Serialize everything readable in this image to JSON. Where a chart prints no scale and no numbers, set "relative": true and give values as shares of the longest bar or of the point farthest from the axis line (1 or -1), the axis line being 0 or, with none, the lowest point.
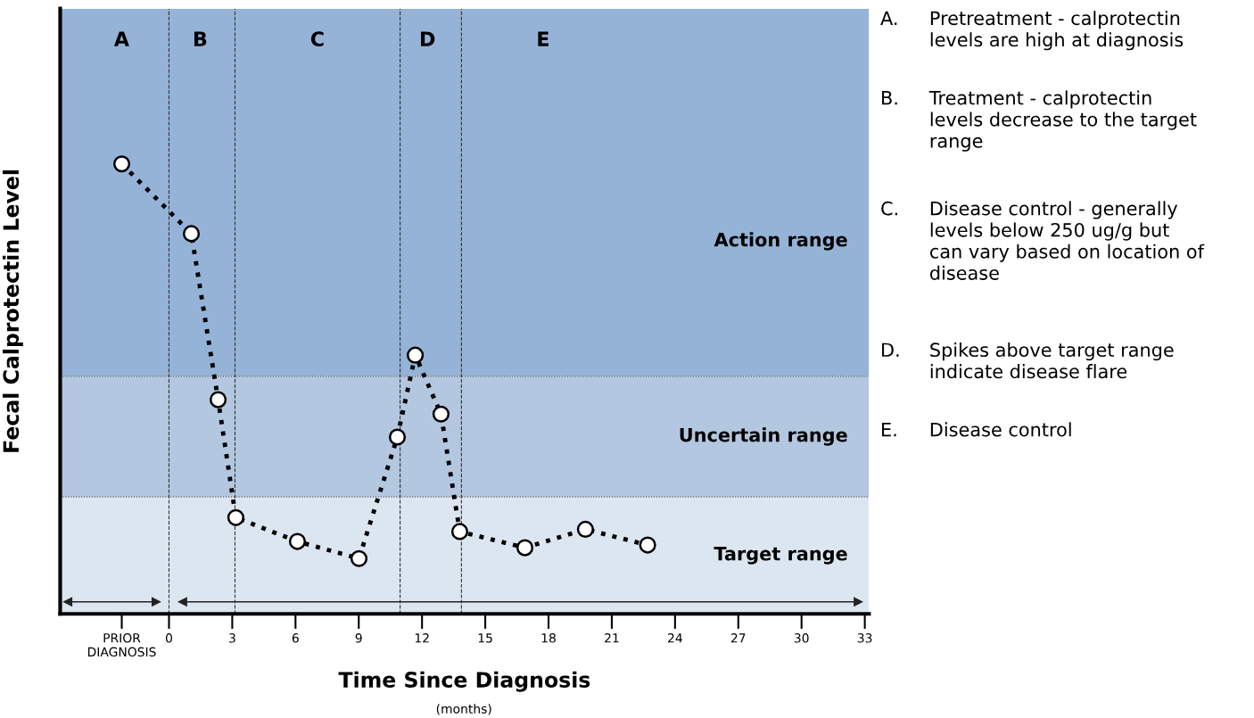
{
  "chart_data": {
    "type": "line",
    "relative": true,
    "xlabel": "Time Since Diagnosis",
    "ylabel": "Fecal Calprotectin Level",
    "x": [
      -2.24,
      1.06,
      2.33,
      3.17,
      6.09,
      9.01,
      10.83,
      11.68,
      12.9,
      13.79,
      16.88,
      19.75,
      22.7
    ],
    "series": [
      {
        "color": "#000000",
        "values": [
          1,
          0.845,
          0.476,
          0.214,
          0.161,
          0.123,
          0.393,
          0.575,
          0.444,
          0.183,
          0.147,
          0.188,
          0.153
        ]
      }
    ],
    "marker": "circle",
    "line_style": "dotted",
    "grid": false,
    "tick_labels": "x",
    "xlim": [
      -5.16,
      33.2
    ],
    "xticks": [
      {
        "value": -2.24,
        "label": "PRIOR\nDIAGNOSIS"
      },
      0,
      3,
      6,
      9,
      12,
      15,
      18,
      21,
      24,
      27,
      30,
      33
    ],
    "bands": [
      {
        "axis": "y",
        "from": 0.528,
        "to": 1.345,
        "label": "Action range",
        "color": "#95b3d7"
      },
      {
        "axis": "y",
        "from": 0.26,
        "to": 0.528,
        "label": "Uncertain range",
        "color": "#b3c7e0"
      },
      {
        "axis": "y",
        "from": 0,
        "to": 0.26,
        "label": "Target range",
        "color": "#dce6f1"
      }
    ],
    "ref_lines": [
      {
        "axis": "x",
        "value": 0,
        "label": null,
        "color": "#333333",
        "line_style": "dashed"
      },
      {
        "axis": "x",
        "value": 3.13,
        "label": null,
        "color": "#333333",
        "line_style": "dashed"
      },
      {
        "axis": "x",
        "value": 10.96,
        "label": null,
        "color": "#333333",
        "line_style": "dashed"
      },
      {
        "axis": "x",
        "value": 13.87,
        "label": null,
        "color": "#333333",
        "line_style": "dashed"
      },
      {
        "axis": "y",
        "value": 0.528,
        "label": null,
        "color": "#555555",
        "line_style": "dotted"
      },
      {
        "axis": "y",
        "value": 0.26,
        "label": null,
        "color": "#555555",
        "line_style": "dotted"
      }
    ],
    "annotations": [
      "(months)",
      "A",
      "B",
      "C",
      "D",
      "E",
      "A.\tPretreatment - calprotectin\nlevels are high at diagnosis",
      "B.\tTreatment - calprotectin\nlevels decrease to the target\nrange",
      "C.\tDisease control - generally\nlevels below 250 ug/g but\ncan vary based on location of\ndisease",
      "D.\tSpikes above target range\nindicate disease flare",
      "E.\tDisease control"
    ]
  }
}
